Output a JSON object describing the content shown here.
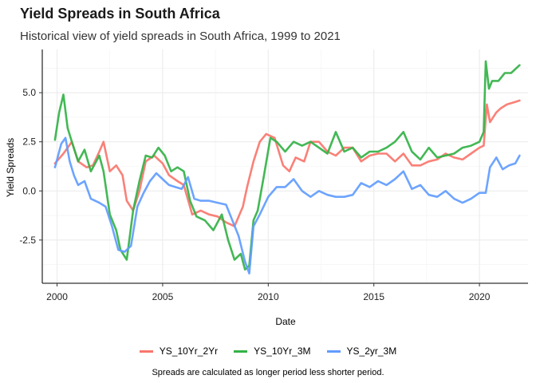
{
  "chart_data": {
    "type": "line",
    "title": "Yield Spreads in South Africa",
    "subtitle": "Historical view of yield spreads in South Africa, 1999 to 2021",
    "xlabel": "Date",
    "ylabel": "Yield Spreads",
    "caption": "Spreads are calculated as longer period less shorter period.",
    "xlim": [
      1999.3,
      2022.3
    ],
    "ylim": [
      -4.7,
      7.2
    ],
    "xticks": [
      "2000",
      "2005",
      "2010",
      "2015",
      "2020"
    ],
    "xtick_values": [
      2000,
      2005,
      2010,
      2015,
      2020
    ],
    "yticks": [
      "-2.5",
      "0.0",
      "2.5",
      "5.0"
    ],
    "ytick_values": [
      -2.5,
      0.0,
      2.5,
      5.0
    ],
    "grid": true,
    "legend_position": "bottom",
    "series": [
      {
        "name": "YS_10Yr_2Yr",
        "color": "#f8766d",
        "x": [
          1999.9,
          2000.3,
          2000.7,
          2001.0,
          2001.4,
          2001.7,
          2002.0,
          2002.2,
          2002.5,
          2002.8,
          2003.1,
          2003.3,
          2003.6,
          2003.9,
          2004.2,
          2004.6,
          2005.0,
          2005.3,
          2005.7,
          2006.0,
          2006.4,
          2006.8,
          2007.2,
          2007.6,
          2008.0,
          2008.4,
          2008.8,
          2009.0,
          2009.3,
          2009.6,
          2009.9,
          2010.3,
          2010.7,
          2011.0,
          2011.3,
          2011.7,
          2012.0,
          2012.4,
          2012.8,
          2013.2,
          2013.6,
          2014.0,
          2014.4,
          2014.8,
          2015.2,
          2015.6,
          2016.0,
          2016.4,
          2016.8,
          2017.2,
          2017.6,
          2018.0,
          2018.4,
          2018.8,
          2019.2,
          2019.6,
          2020.0,
          2020.2,
          2020.35,
          2020.5,
          2020.8,
          2021.0,
          2021.3,
          2021.6,
          2021.9
        ],
        "y": [
          1.4,
          1.9,
          2.5,
          1.5,
          1.2,
          1.3,
          2.0,
          2.5,
          1.0,
          1.3,
          0.8,
          -0.5,
          -1.0,
          0.0,
          1.5,
          1.8,
          1.4,
          0.8,
          0.5,
          0.3,
          -1.2,
          -1.0,
          -1.2,
          -1.3,
          -1.6,
          -1.8,
          -0.8,
          0.2,
          1.5,
          2.5,
          2.9,
          2.7,
          1.3,
          1.0,
          1.7,
          1.5,
          2.5,
          2.5,
          2.0,
          1.8,
          2.2,
          2.2,
          1.5,
          1.8,
          1.9,
          1.9,
          1.5,
          1.9,
          1.3,
          1.3,
          1.5,
          1.6,
          1.9,
          1.7,
          1.6,
          1.9,
          2.2,
          2.3,
          4.4,
          3.5,
          4.0,
          4.2,
          4.4,
          4.5,
          4.6
        ]
      },
      {
        "name": "YS_10Yr_3M",
        "color": "#33b246",
        "x": [
          1999.9,
          2000.1,
          2000.3,
          2000.5,
          2000.7,
          2001.0,
          2001.3,
          2001.6,
          2002.0,
          2002.2,
          2002.5,
          2002.8,
          2003.0,
          2003.3,
          2003.6,
          2003.9,
          2004.2,
          2004.5,
          2004.8,
          2005.1,
          2005.4,
          2005.7,
          2006.0,
          2006.3,
          2006.6,
          2007.0,
          2007.4,
          2007.8,
          2008.1,
          2008.4,
          2008.7,
          2008.9,
          2009.1,
          2009.3,
          2009.5,
          2009.8,
          2010.1,
          2010.4,
          2010.8,
          2011.2,
          2011.6,
          2012.0,
          2012.4,
          2012.8,
          2013.2,
          2013.6,
          2014.0,
          2014.4,
          2014.8,
          2015.2,
          2015.6,
          2016.0,
          2016.4,
          2016.8,
          2017.2,
          2017.6,
          2018.0,
          2018.4,
          2018.8,
          2019.2,
          2019.6,
          2020.0,
          2020.2,
          2020.3,
          2020.45,
          2020.6,
          2020.9,
          2021.2,
          2021.5,
          2021.9
        ],
        "y": [
          2.6,
          4.0,
          4.9,
          3.2,
          2.5,
          1.5,
          2.1,
          1.0,
          1.8,
          1.0,
          -1.2,
          -2.0,
          -3.0,
          -3.5,
          -1.0,
          0.5,
          1.8,
          1.7,
          2.2,
          1.8,
          1.0,
          1.2,
          1.0,
          -0.5,
          -1.3,
          -1.5,
          -2.0,
          -1.2,
          -2.5,
          -3.5,
          -3.2,
          -4.0,
          -3.8,
          -1.5,
          -1.0,
          0.8,
          2.7,
          2.5,
          2.0,
          2.5,
          2.3,
          2.5,
          2.2,
          1.9,
          3.0,
          2.0,
          2.2,
          1.7,
          2.0,
          2.0,
          2.2,
          2.5,
          3.0,
          2.0,
          1.6,
          2.2,
          1.7,
          1.8,
          1.9,
          2.2,
          2.3,
          2.5,
          3.0,
          6.6,
          5.2,
          5.6,
          5.6,
          6.0,
          6.0,
          6.4
        ]
      },
      {
        "name": "YS_2yr_3M",
        "color": "#619cff",
        "x": [
          1999.9,
          2000.2,
          2000.4,
          2000.6,
          2000.8,
          2001.0,
          2001.3,
          2001.6,
          2002.0,
          2002.3,
          2002.6,
          2002.9,
          2003.2,
          2003.5,
          2003.8,
          2004.1,
          2004.4,
          2004.7,
          2005.0,
          2005.3,
          2005.6,
          2005.9,
          2006.2,
          2006.5,
          2006.8,
          2007.2,
          2007.6,
          2008.0,
          2008.3,
          2008.6,
          2008.9,
          2009.1,
          2009.3,
          2009.6,
          2010.0,
          2010.4,
          2010.8,
          2011.2,
          2011.6,
          2012.0,
          2012.4,
          2012.8,
          2013.2,
          2013.6,
          2014.0,
          2014.4,
          2014.8,
          2015.2,
          2015.6,
          2016.0,
          2016.4,
          2016.8,
          2017.2,
          2017.6,
          2018.0,
          2018.4,
          2018.8,
          2019.2,
          2019.6,
          2020.0,
          2020.3,
          2020.5,
          2020.8,
          2021.1,
          2021.4,
          2021.7,
          2021.9
        ],
        "y": [
          1.2,
          2.4,
          2.7,
          1.5,
          0.8,
          0.3,
          0.5,
          -0.4,
          -0.6,
          -0.8,
          -1.8,
          -3.0,
          -3.1,
          -2.8,
          -0.8,
          -0.1,
          0.5,
          0.9,
          0.6,
          0.3,
          0.2,
          0.1,
          0.7,
          -0.4,
          -0.5,
          -0.5,
          -0.6,
          -0.7,
          -1.5,
          -2.3,
          -3.6,
          -4.2,
          -1.8,
          -1.2,
          -0.3,
          0.2,
          0.2,
          0.6,
          0.0,
          -0.3,
          0.0,
          -0.2,
          -0.3,
          -0.3,
          -0.2,
          0.4,
          0.2,
          0.5,
          0.3,
          0.6,
          1.0,
          0.1,
          0.3,
          -0.2,
          -0.3,
          0.0,
          -0.4,
          -0.6,
          -0.4,
          -0.1,
          -0.1,
          1.2,
          1.7,
          1.1,
          1.3,
          1.4,
          1.8
        ]
      }
    ]
  }
}
